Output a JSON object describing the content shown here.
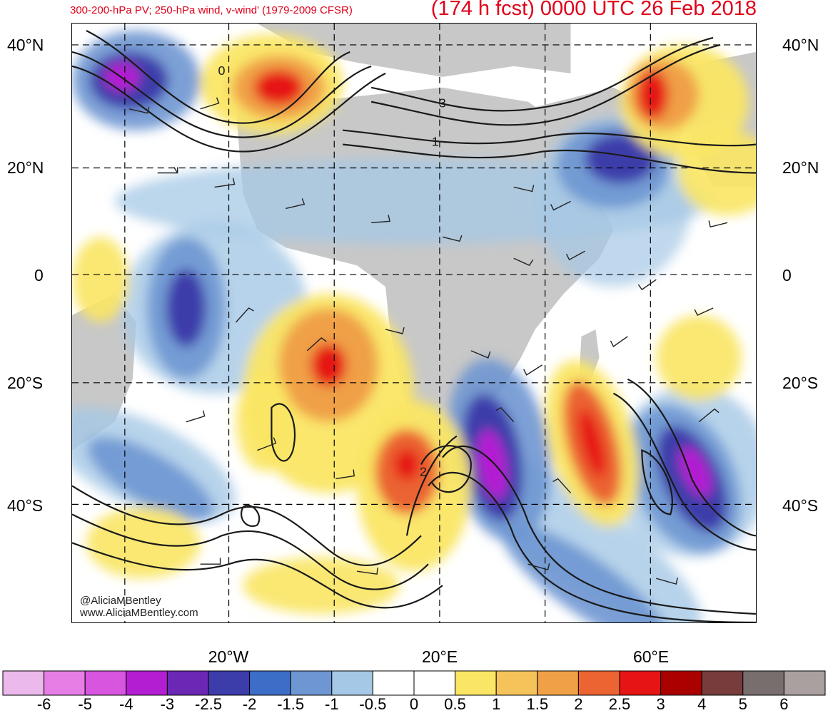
{
  "title": {
    "left": "300-200-hPa PV; 250-hPa wind, v-wind' (1979-2009 CFSR)",
    "right": "(174 h fcst) 0000 UTC 26 Feb 2018"
  },
  "map": {
    "lat_labels": [
      "40°N",
      "20°N",
      "0",
      "20°S",
      "40°S"
    ],
    "lon_labels": [
      "20°W",
      "20°E",
      "60°E"
    ],
    "land_color": "#c8c8c8",
    "contour_color": "#1a1a1a",
    "contour_labels": [
      "3",
      "1",
      "2",
      "0"
    ]
  },
  "watermark": {
    "handle": "@AliciaMBentley",
    "url": "www.AliciaMBentley.com"
  },
  "colorbar": {
    "ticks": [
      "-6",
      "-5",
      "-4",
      "-3",
      "-2.5",
      "-2",
      "-1.5",
      "-1",
      "-0.5",
      "0",
      "0.5",
      "1",
      "1.5",
      "2",
      "2.5",
      "3",
      "4",
      "5",
      "6"
    ],
    "colors": [
      "#ebb9eb",
      "#e67ee6",
      "#d855e0",
      "#b41ed2",
      "#6b28b4",
      "#3c3caa",
      "#3c6ec8",
      "#6e96d2",
      "#a5c8e6",
      "#ffffff",
      "#ffffff",
      "#fae664",
      "#f5c35a",
      "#f0a046",
      "#eb6432",
      "#e61414",
      "#aa0000",
      "#783c3c",
      "#786e6e",
      "#aaa0a0"
    ]
  }
}
